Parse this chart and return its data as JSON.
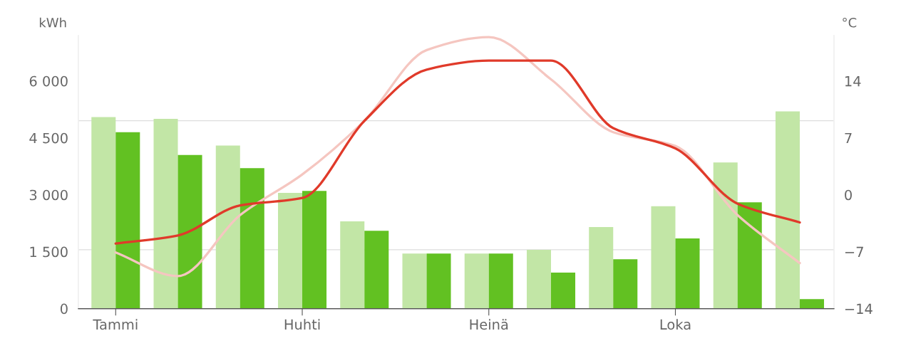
{
  "chart_data": {
    "type": "bar",
    "categories": [
      "Tammi",
      null,
      null,
      "Huhti",
      null,
      null,
      "Heinä",
      null,
      null,
      "Loka",
      null,
      null
    ],
    "ylabel": "kWh",
    "y2label": "°C",
    "series": [
      {
        "color": "#c2e6a6",
        "values": [
          5050,
          5000,
          4300,
          3050,
          2300,
          1450,
          1450,
          1550,
          2150,
          2700,
          3850,
          5200
        ]
      },
      {
        "color": "#62c122",
        "values": [
          4650,
          4050,
          3700,
          3100,
          2050,
          1450,
          1450,
          950,
          1300,
          1850,
          2800,
          250
        ]
      },
      {
        "type": "line",
        "axis": "y2",
        "color": "#f5c6c0",
        "values": [
          -7.1,
          -10.0,
          -2.5,
          2.5,
          9.1,
          17.8,
          19.4,
          14.2,
          7.7,
          6.0,
          -2.5,
          -8.4
        ]
      },
      {
        "type": "line",
        "axis": "y2",
        "color": "#e03a2a",
        "values": [
          -6.0,
          -5.0,
          -1.3,
          -0.4,
          9.1,
          15.4,
          16.5,
          16.5,
          8.2,
          5.7,
          -1.1,
          -3.4
        ]
      }
    ],
    "ylim": [
      0,
      7200
    ],
    "yticks": [
      {
        "value": 0,
        "label": "0"
      },
      {
        "value": 1500,
        "label": "1 500"
      },
      {
        "value": 3000,
        "label": "3 000"
      },
      {
        "value": 4500,
        "label": "4 500"
      },
      {
        "value": 6000,
        "label": "6 000"
      }
    ],
    "y2lim": [
      -14,
      19.6
    ],
    "y2ticks": [
      {
        "value": -14,
        "label": "−14"
      },
      {
        "value": -7,
        "label": "−7"
      },
      0,
      7,
      14
    ],
    "ref_lines": [
      {
        "axis": "y",
        "value": 1550,
        "label": null,
        "color": "#dddddd"
      },
      {
        "axis": "y",
        "value": 4950,
        "label": null,
        "color": "#dddddd"
      }
    ],
    "grid": false,
    "legend": false
  }
}
